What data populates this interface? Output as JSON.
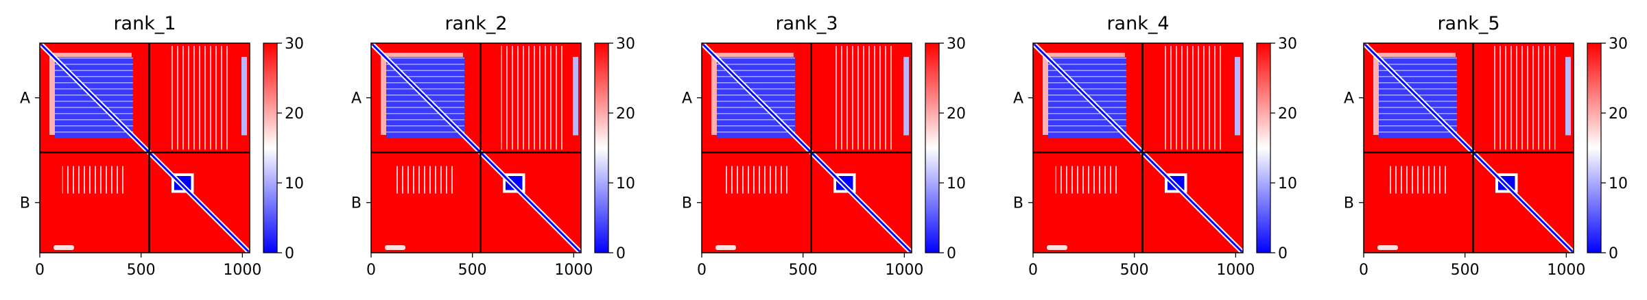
{
  "figure": {
    "background": "#ffffff"
  },
  "colors": {
    "low": "#0000ff",
    "mid": "#ffffff",
    "high": "#ff0000",
    "divider": "#000000"
  },
  "chart_data": [
    {
      "type": "heatmap",
      "title": "rank_1",
      "xticks": [
        0,
        500,
        1000
      ],
      "xtick_labels": [
        "0",
        "500",
        "1000"
      ],
      "xlim": [
        0,
        1036
      ],
      "chains": [
        {
          "name": "A",
          "start": 0,
          "end": 540
        },
        {
          "name": "B",
          "start": 540,
          "end": 1036
        }
      ],
      "colorbar": {
        "cmap": "bwr",
        "vmin": 0,
        "vmax": 30,
        "ticks": [
          0,
          10,
          20,
          30
        ],
        "tick_labels": [
          "0",
          "10",
          "20",
          "30"
        ]
      },
      "ylabels": [
        "A",
        "B"
      ],
      "domain_A": [
        60,
        440
      ],
      "domain_B": [
        650,
        760
      ]
    },
    {
      "type": "heatmap",
      "title": "rank_2",
      "xticks": [
        0,
        500,
        1000
      ],
      "xtick_labels": [
        "0",
        "500",
        "1000"
      ],
      "xlim": [
        0,
        1036
      ],
      "chains": [
        {
          "name": "A",
          "start": 0,
          "end": 540
        },
        {
          "name": "B",
          "start": 540,
          "end": 1036
        }
      ],
      "colorbar": {
        "cmap": "bwr",
        "vmin": 0,
        "vmax": 30,
        "ticks": [
          0,
          10,
          20,
          30
        ],
        "tick_labels": [
          "0",
          "10",
          "20",
          "30"
        ]
      },
      "ylabels": [
        "A",
        "B"
      ],
      "domain_A": [
        60,
        440
      ],
      "domain_B": [
        650,
        760
      ]
    },
    {
      "type": "heatmap",
      "title": "rank_3",
      "xticks": [
        0,
        500,
        1000
      ],
      "xtick_labels": [
        "0",
        "500",
        "1000"
      ],
      "xlim": [
        0,
        1036
      ],
      "chains": [
        {
          "name": "A",
          "start": 0,
          "end": 540
        },
        {
          "name": "B",
          "start": 540,
          "end": 1036
        }
      ],
      "colorbar": {
        "cmap": "bwr",
        "vmin": 0,
        "vmax": 30,
        "ticks": [
          0,
          10,
          20,
          30
        ],
        "tick_labels": [
          "0",
          "10",
          "20",
          "30"
        ]
      },
      "ylabels": [
        "A",
        "B"
      ],
      "domain_A": [
        60,
        440
      ],
      "domain_B": [
        650,
        760
      ]
    },
    {
      "type": "heatmap",
      "title": "rank_4",
      "xticks": [
        0,
        500,
        1000
      ],
      "xtick_labels": [
        "0",
        "500",
        "1000"
      ],
      "xlim": [
        0,
        1036
      ],
      "chains": [
        {
          "name": "A",
          "start": 0,
          "end": 540
        },
        {
          "name": "B",
          "start": 540,
          "end": 1036
        }
      ],
      "colorbar": {
        "cmap": "bwr",
        "vmin": 0,
        "vmax": 30,
        "ticks": [
          0,
          10,
          20,
          30
        ],
        "tick_labels": [
          "0",
          "10",
          "20",
          "30"
        ]
      },
      "ylabels": [
        "A",
        "B"
      ],
      "domain_A": [
        60,
        440
      ],
      "domain_B": [
        650,
        760
      ]
    },
    {
      "type": "heatmap",
      "title": "rank_5",
      "xticks": [
        0,
        500,
        1000
      ],
      "xtick_labels": [
        "0",
        "500",
        "1000"
      ],
      "xlim": [
        0,
        1036
      ],
      "chains": [
        {
          "name": "A",
          "start": 0,
          "end": 540
        },
        {
          "name": "B",
          "start": 540,
          "end": 1036
        }
      ],
      "colorbar": {
        "cmap": "bwr",
        "vmin": 0,
        "vmax": 30,
        "ticks": [
          0,
          10,
          20,
          30
        ],
        "tick_labels": [
          "0",
          "10",
          "20",
          "30"
        ]
      },
      "ylabels": [
        "A",
        "B"
      ],
      "domain_A": [
        60,
        440
      ],
      "domain_B": [
        650,
        760
      ]
    }
  ]
}
